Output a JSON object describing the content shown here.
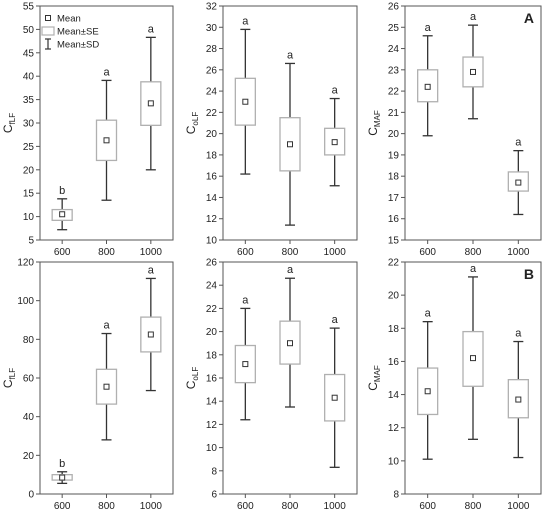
{
  "figure": {
    "width": 550,
    "height": 509
  },
  "legend": {
    "items": [
      {
        "label": "Mean",
        "symbol": "square"
      },
      {
        "label": "Mean±SE",
        "symbol": "box"
      },
      {
        "label": "Mean±SD",
        "symbol": "whisker"
      }
    ]
  },
  "colors": {
    "axis": "#555555",
    "box": "#b0b0b0",
    "whisker": "#333333",
    "mean": "#333333",
    "background": "#ffffff"
  },
  "chart_data": [
    {
      "id": "A1",
      "type": "box",
      "row_label": "",
      "ylabel": "C",
      "ylabel_sub": "fLF",
      "categories": [
        "600",
        "800",
        "1000"
      ],
      "ylim": [
        5,
        55
      ],
      "yticks": [
        5,
        10,
        15,
        20,
        25,
        30,
        35,
        40,
        45,
        50,
        55
      ],
      "mean": [
        10.5,
        26.3,
        34.2
      ],
      "se_low": [
        9.2,
        22.0,
        29.5
      ],
      "se_high": [
        11.5,
        30.6,
        38.8
      ],
      "sd_low": [
        7.2,
        13.5,
        20.0
      ],
      "sd_high": [
        13.8,
        39.1,
        48.3
      ],
      "letters": [
        "b",
        "a",
        "a"
      ]
    },
    {
      "id": "A2",
      "type": "box",
      "row_label": "",
      "ylabel": "C",
      "ylabel_sub": "oLF",
      "categories": [
        "600",
        "800",
        "1000"
      ],
      "ylim": [
        10,
        32
      ],
      "yticks": [
        10,
        12,
        14,
        16,
        18,
        20,
        22,
        24,
        26,
        28,
        30,
        32
      ],
      "mean": [
        23.0,
        19.0,
        19.2
      ],
      "se_low": [
        20.8,
        16.5,
        18.0
      ],
      "se_high": [
        25.2,
        21.5,
        20.5
      ],
      "sd_low": [
        16.2,
        11.4,
        15.1
      ],
      "sd_high": [
        29.8,
        26.6,
        23.3
      ],
      "letters": [
        "a",
        "a",
        "a"
      ]
    },
    {
      "id": "A3",
      "type": "box",
      "row_label": "A",
      "ylabel": "C",
      "ylabel_sub": "MAF",
      "categories": [
        "600",
        "800",
        "1000"
      ],
      "ylim": [
        15,
        26
      ],
      "yticks": [
        15,
        16,
        17,
        18,
        19,
        20,
        21,
        22,
        23,
        24,
        25,
        26
      ],
      "mean": [
        22.2,
        22.9,
        17.7
      ],
      "se_low": [
        21.5,
        22.2,
        17.3
      ],
      "se_high": [
        23.0,
        23.6,
        18.2
      ],
      "sd_low": [
        19.9,
        20.7,
        16.2
      ],
      "sd_high": [
        24.6,
        25.1,
        19.2
      ],
      "letters": [
        "a",
        "a",
        "a"
      ]
    },
    {
      "id": "B1",
      "type": "box",
      "row_label": "",
      "ylabel": "C",
      "ylabel_sub": "fLF",
      "categories": [
        "600",
        "800",
        "1000"
      ],
      "ylim": [
        0,
        120
      ],
      "yticks": [
        0,
        20,
        40,
        60,
        80,
        100,
        120
      ],
      "mean": [
        8.5,
        55.5,
        82.5
      ],
      "se_low": [
        7.2,
        46.5,
        73.5
      ],
      "se_high": [
        10.0,
        64.5,
        91.5
      ],
      "sd_low": [
        5.5,
        28.0,
        53.5
      ],
      "sd_high": [
        11.5,
        83.0,
        111.5
      ],
      "letters": [
        "b",
        "a",
        "a"
      ]
    },
    {
      "id": "B2",
      "type": "box",
      "row_label": "",
      "ylabel": "C",
      "ylabel_sub": "oLF",
      "categories": [
        "600",
        "800",
        "1000"
      ],
      "ylim": [
        6,
        26
      ],
      "yticks": [
        6,
        8,
        10,
        12,
        14,
        16,
        18,
        20,
        22,
        24,
        26
      ],
      "mean": [
        17.2,
        19.0,
        14.3
      ],
      "se_low": [
        15.6,
        17.2,
        12.3
      ],
      "se_high": [
        18.8,
        20.9,
        16.3
      ],
      "sd_low": [
        12.4,
        13.5,
        8.3
      ],
      "sd_high": [
        22.0,
        24.6,
        20.3
      ],
      "letters": [
        "a",
        "a",
        "a"
      ]
    },
    {
      "id": "B3",
      "type": "box",
      "row_label": "B",
      "ylabel": "C",
      "ylabel_sub": "MAF",
      "categories": [
        "600",
        "800",
        "1000"
      ],
      "ylim": [
        8,
        22
      ],
      "yticks": [
        8,
        10,
        12,
        14,
        16,
        18,
        20,
        22
      ],
      "mean": [
        14.2,
        16.2,
        13.7
      ],
      "se_low": [
        12.8,
        14.5,
        12.6
      ],
      "se_high": [
        15.6,
        17.8,
        14.9
      ],
      "sd_low": [
        10.1,
        11.3,
        10.2
      ],
      "sd_high": [
        18.4,
        21.1,
        17.2
      ],
      "letters": [
        "a",
        "a",
        "a"
      ]
    }
  ]
}
